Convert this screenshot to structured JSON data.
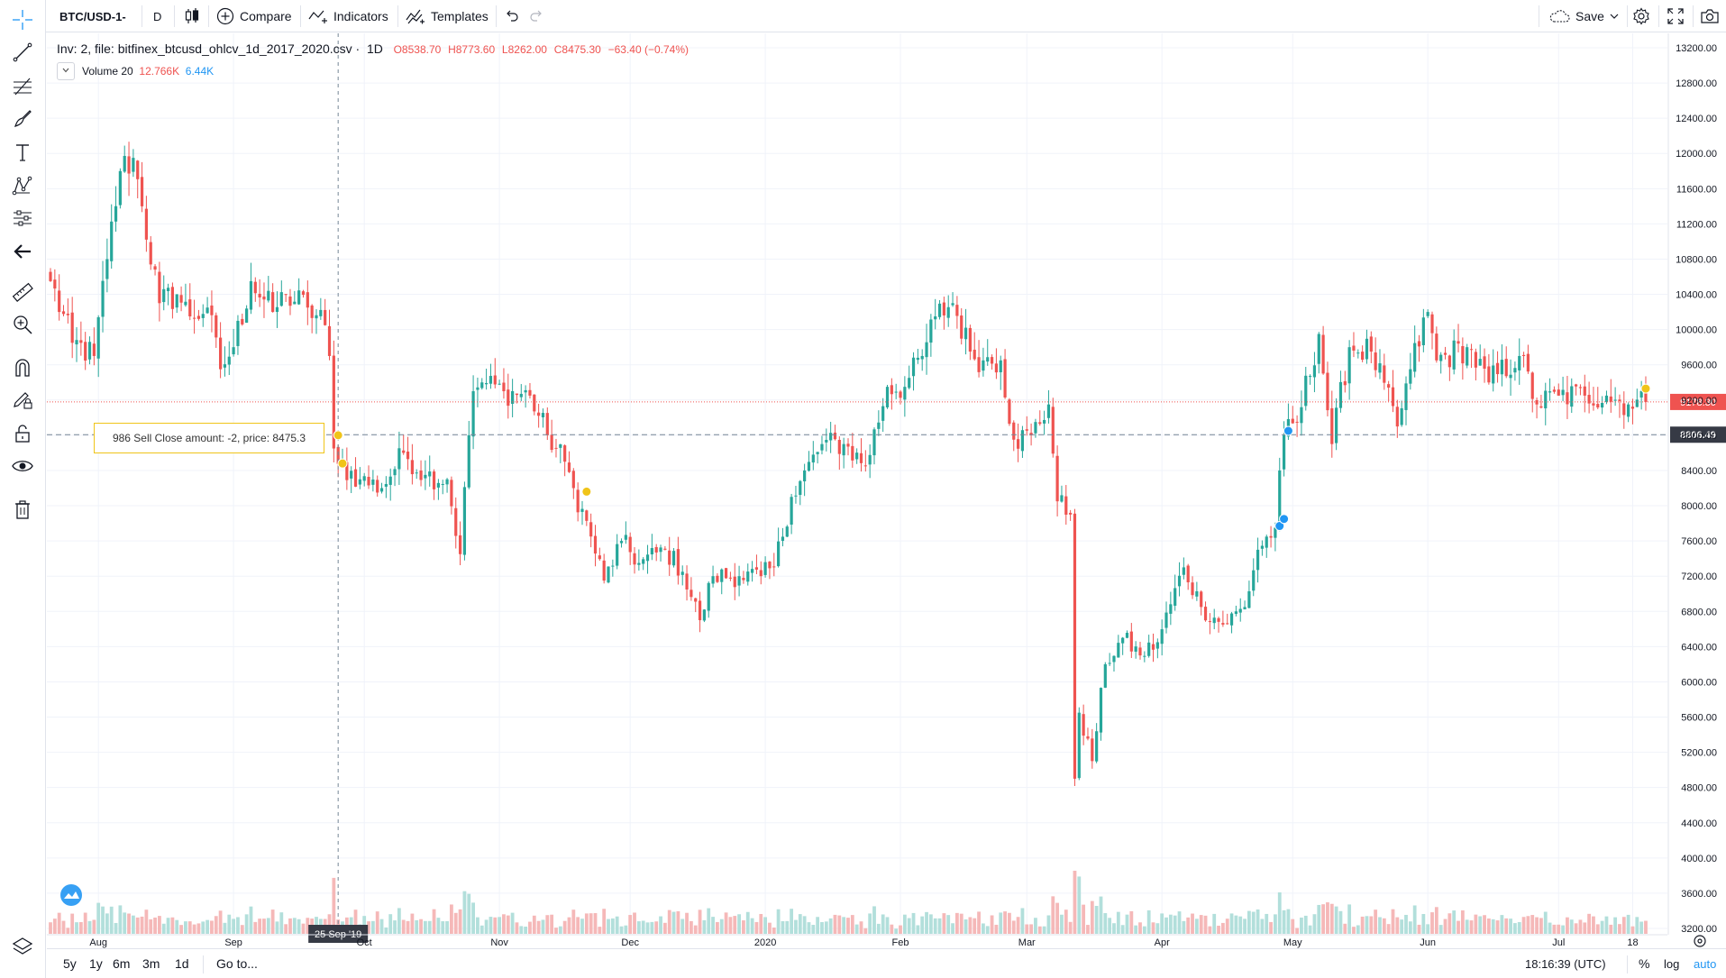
{
  "toolbar": {
    "symbol": "BTC/USD-1-",
    "interval": "D",
    "compare": "Compare",
    "indicators": "Indicators",
    "templates": "Templates",
    "save": "Save"
  },
  "legend": {
    "title": "Inv: 2, file: bitfinex_btcusd_ohlcv_1d_2017_2020.csv",
    "resolution": "1D",
    "open": "O8538.70",
    "high": "H8773.60",
    "low": "L8262.00",
    "close": "C8475.30",
    "change": "−63.40 (−0.74%)",
    "volume_label": "Volume 20",
    "volume_value1": "12.766K",
    "volume_value2": "6.44K"
  },
  "tooltip": {
    "text": "986 Sell Close amount: -2, price: 8475.3"
  },
  "bottom": {
    "ranges": [
      "5y",
      "1y",
      "6m",
      "3m",
      "1d"
    ],
    "goto": "Go to...",
    "time": "18:16:39 (UTC)",
    "percent": "%",
    "log": "log",
    "auto": "auto"
  },
  "colors": {
    "up": "#26a69a",
    "down": "#ef5350",
    "up_volume": "#b2dfdb",
    "down_volume": "#f5b8b8",
    "marker_sell": "#f0c419",
    "marker_buy": "#2196f3",
    "last_price": "#ef5350",
    "crosshair_price": "#363a45"
  },
  "chart_data": {
    "type": "candlestick",
    "interval": "1D",
    "x_labels": [
      "Aug",
      "Sep",
      "Oct",
      "Nov",
      "Dec",
      "2020",
      "Feb",
      "Mar",
      "Apr",
      "May",
      "Jun",
      "Jul",
      "18"
    ],
    "x_label_dates": [
      "2019-08-01",
      "2019-09-01",
      "2019-10-01",
      "2019-11-01",
      "2019-12-01",
      "2020-01-01",
      "2020-02-01",
      "2020-03-01",
      "2020-04-01",
      "2020-05-01",
      "2020-06-01",
      "2020-07-01",
      "2020-07-18"
    ],
    "date_range": [
      "2019-07-21",
      "2020-07-21"
    ],
    "crosshair_date_label": "25 Sep '19",
    "y_ticks": [
      13200,
      12800,
      12400,
      12000,
      11600,
      11200,
      10800,
      10400,
      10000,
      9600,
      9200,
      8800,
      8400,
      8000,
      7600,
      7200,
      6800,
      6400,
      6000,
      5600,
      5200,
      4800,
      4400,
      4000,
      3600,
      3200
    ],
    "y_tick_labels": [
      "13200.00",
      "12800.00",
      "12400.00",
      "12000.00",
      "11600.00",
      "11200.00",
      "10800.00",
      "10400.00",
      "10000.00",
      "9600.00",
      "9200.00",
      "8800.00",
      "8400.00",
      "8000.00",
      "7600.00",
      "7200.00",
      "6800.00",
      "6400.00",
      "6000.00",
      "5600.00",
      "5200.00",
      "4800.00",
      "4400.00",
      "4000.00",
      "3600.00",
      "3200.00"
    ],
    "last_price": 9178.3,
    "last_price_label": "9178.30",
    "crosshair_price": 8806.49,
    "crosshair_price_label": "8806.49",
    "close_anchors": [
      [
        "2019-07-21",
        10550
      ],
      [
        "2019-07-26",
        9850
      ],
      [
        "2019-07-31",
        9700
      ],
      [
        "2019-08-03",
        10800
      ],
      [
        "2019-08-06",
        11800
      ],
      [
        "2019-08-09",
        11950
      ],
      [
        "2019-08-11",
        11400
      ],
      [
        "2019-08-15",
        10300
      ],
      [
        "2019-08-19",
        10400
      ],
      [
        "2019-08-22",
        10150
      ],
      [
        "2019-08-26",
        10250
      ],
      [
        "2019-08-29",
        9550
      ],
      [
        "2019-09-01",
        9800
      ],
      [
        "2019-09-05",
        10550
      ],
      [
        "2019-09-10",
        10200
      ],
      [
        "2019-09-13",
        10400
      ],
      [
        "2019-09-18",
        10250
      ],
      [
        "2019-09-22",
        10050
      ],
      [
        "2019-09-23",
        9700
      ],
      [
        "2019-09-24",
        8650
      ],
      [
        "2019-09-25",
        8475
      ],
      [
        "2019-09-30",
        8300
      ],
      [
        "2019-10-05",
        8200
      ],
      [
        "2019-10-10",
        8600
      ],
      [
        "2019-10-15",
        8350
      ],
      [
        "2019-10-20",
        8300
      ],
      [
        "2019-10-23",
        7450
      ],
      [
        "2019-10-25",
        8800
      ],
      [
        "2019-10-26",
        9300
      ],
      [
        "2019-10-28",
        9400
      ],
      [
        "2019-11-02",
        9300
      ],
      [
        "2019-11-08",
        9250
      ],
      [
        "2019-11-12",
        8800
      ],
      [
        "2019-11-16",
        8500
      ],
      [
        "2019-11-18",
        8200
      ],
      [
        "2019-11-22",
        7650
      ],
      [
        "2019-11-25",
        7150
      ],
      [
        "2019-11-29",
        7600
      ],
      [
        "2019-12-03",
        7350
      ],
      [
        "2019-12-09",
        7500
      ],
      [
        "2019-12-13",
        7250
      ],
      [
        "2019-12-17",
        6700
      ],
      [
        "2019-12-20",
        7200
      ],
      [
        "2019-12-26",
        7200
      ],
      [
        "2019-12-31",
        7200
      ],
      [
        "2020-01-03",
        7300
      ],
      [
        "2020-01-07",
        8100
      ],
      [
        "2020-01-14",
        8700
      ],
      [
        "2020-01-19",
        8700
      ],
      [
        "2020-01-24",
        8450
      ],
      [
        "2020-01-29",
        9350
      ],
      [
        "2020-02-02",
        9350
      ],
      [
        "2020-02-06",
        9700
      ],
      [
        "2020-02-09",
        10150
      ],
      [
        "2020-02-13",
        10300
      ],
      [
        "2020-02-17",
        9750
      ],
      [
        "2020-02-20",
        9650
      ],
      [
        "2020-02-24",
        9650
      ],
      [
        "2020-02-27",
        8750
      ],
      [
        "2020-03-02",
        8800
      ],
      [
        "2020-03-06",
        9150
      ],
      [
        "2020-03-08",
        8050
      ],
      [
        "2020-03-11",
        7900
      ],
      [
        "2020-03-12",
        4900
      ],
      [
        "2020-03-13",
        5650
      ],
      [
        "2020-03-16",
        5100
      ],
      [
        "2020-03-19",
        6200
      ],
      [
        "2020-03-23",
        6500
      ],
      [
        "2020-03-27",
        6300
      ],
      [
        "2020-03-31",
        6450
      ],
      [
        "2020-04-06",
        7300
      ],
      [
        "2020-04-10",
        6850
      ],
      [
        "2020-04-15",
        6650
      ],
      [
        "2020-04-20",
        6850
      ],
      [
        "2020-04-23",
        7500
      ],
      [
        "2020-04-27",
        7750
      ],
      [
        "2020-04-29",
        8800
      ],
      [
        "2020-05-02",
        8950
      ],
      [
        "2020-05-07",
        9950
      ],
      [
        "2020-05-10",
        8700
      ],
      [
        "2020-05-14",
        9800
      ],
      [
        "2020-05-19",
        9750
      ],
      [
        "2020-05-25",
        8900
      ],
      [
        "2020-05-28",
        9550
      ],
      [
        "2020-06-01",
        10200
      ],
      [
        "2020-06-03",
        9650
      ],
      [
        "2020-06-10",
        9800
      ],
      [
        "2020-06-15",
        9400
      ],
      [
        "2020-06-22",
        9700
      ],
      [
        "2020-06-26",
        9150
      ],
      [
        "2020-07-01",
        9250
      ],
      [
        "2020-07-07",
        9250
      ],
      [
        "2020-07-12",
        9250
      ],
      [
        "2020-07-17",
        9150
      ],
      [
        "2020-07-21",
        9178
      ]
    ],
    "volume_axis_note": "volume bars at bottom, unlabeled",
    "markers": [
      {
        "date": "2019-09-25",
        "price": 8800,
        "color": "sell",
        "label": "986 Sell Close amount: -2, price: 8475.3"
      },
      {
        "date": "2019-09-26",
        "price": 8480,
        "color": "sell"
      },
      {
        "date": "2019-11-21",
        "price": 8160,
        "color": "sell"
      },
      {
        "date": "2020-04-28",
        "price": 7770,
        "color": "buy"
      },
      {
        "date": "2020-04-29",
        "price": 7850,
        "color": "buy"
      },
      {
        "date": "2020-04-30",
        "price": 8850,
        "color": "buy"
      },
      {
        "date": "2020-07-21",
        "price": 9330,
        "color": "sell"
      }
    ]
  }
}
